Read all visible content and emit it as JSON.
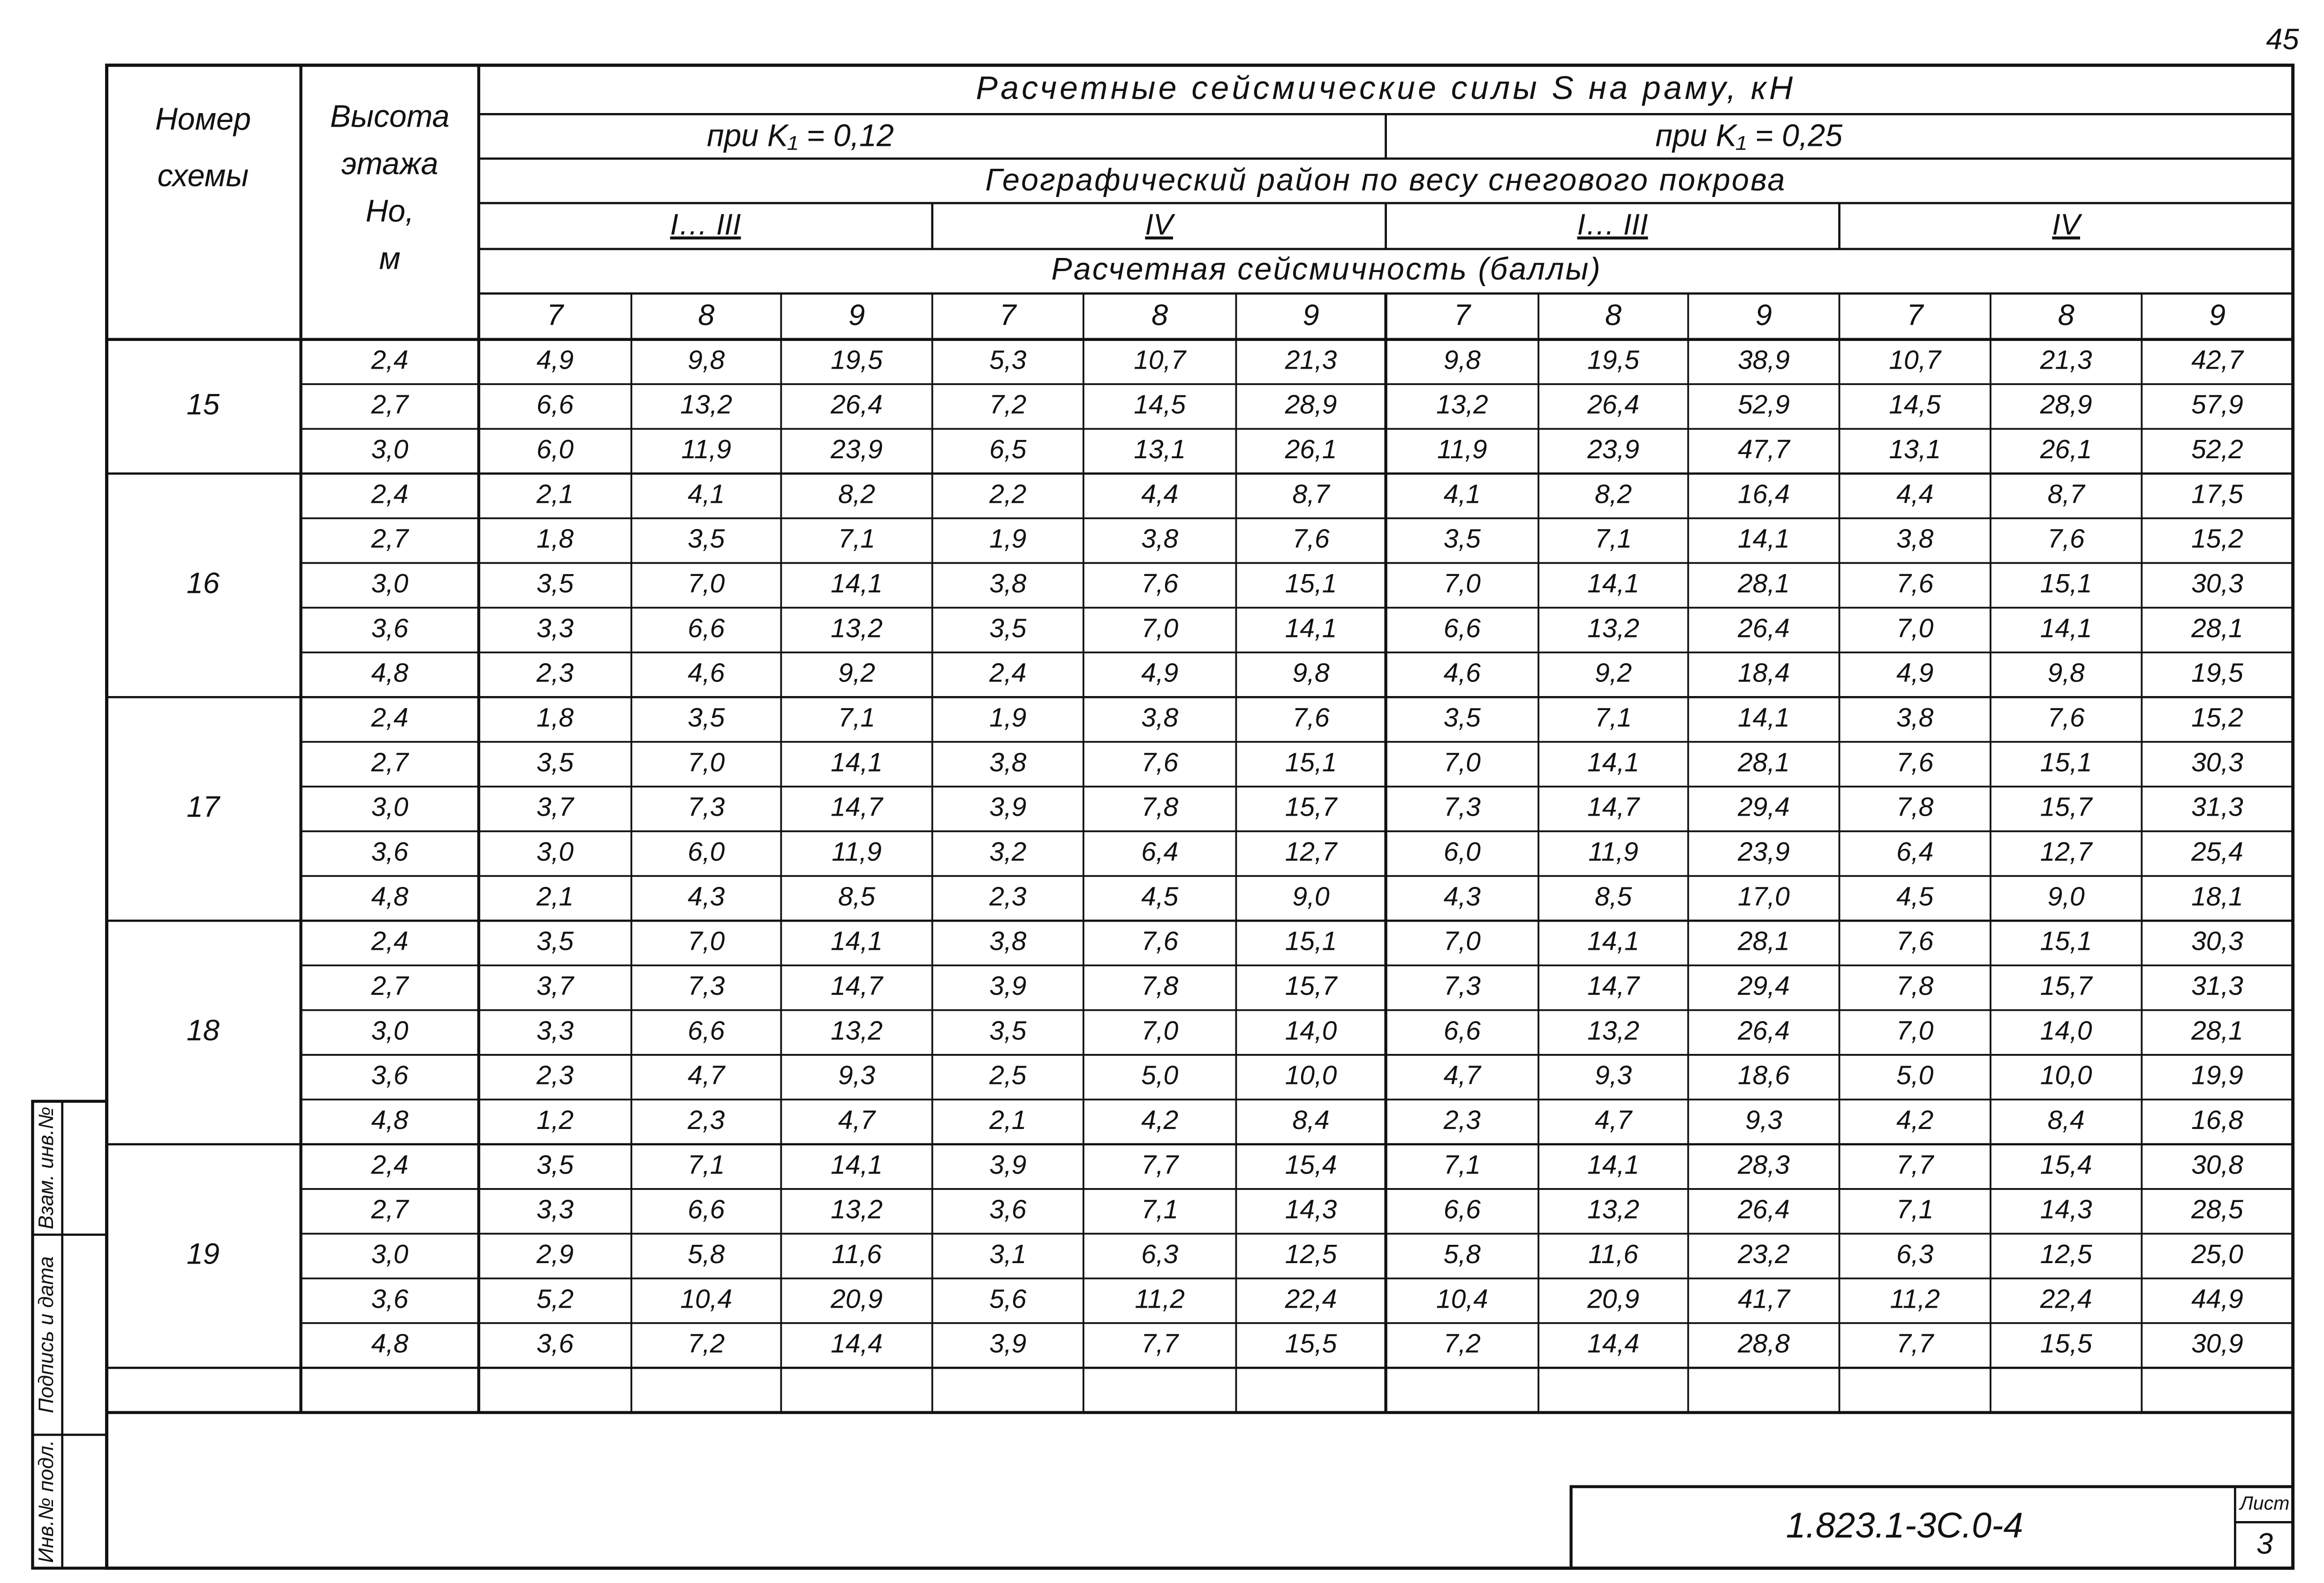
{
  "page_number": "45",
  "header": {
    "scheme": [
      "Номер",
      "схемы"
    ],
    "height": [
      "Высота",
      "этажа",
      "Hо,",
      "м"
    ],
    "title": "Расчетные сейсмические силы S на раму, кН",
    "coef": [
      "при K₁ = 0,12",
      "при K₁ = 0,25"
    ],
    "region_title": "Географический район по весу снегового покрова",
    "regions": [
      "I… III",
      "IV",
      "I… III",
      "IV"
    ],
    "intensity_title": "Расчетная сейсмичность (баллы)",
    "intensities": [
      "7",
      "8",
      "9",
      "7",
      "8",
      "9",
      "7",
      "8",
      "9",
      "7",
      "8",
      "9"
    ]
  },
  "groups": [
    {
      "scheme": "15",
      "rows": [
        {
          "height": "2,4",
          "values": [
            "4,9",
            "9,8",
            "19,5",
            "5,3",
            "10,7",
            "21,3",
            "9,8",
            "19,5",
            "38,9",
            "10,7",
            "21,3",
            "42,7"
          ]
        },
        {
          "height": "2,7",
          "values": [
            "6,6",
            "13,2",
            "26,4",
            "7,2",
            "14,5",
            "28,9",
            "13,2",
            "26,4",
            "52,9",
            "14,5",
            "28,9",
            "57,9"
          ]
        },
        {
          "height": "3,0",
          "values": [
            "6,0",
            "11,9",
            "23,9",
            "6,5",
            "13,1",
            "26,1",
            "11,9",
            "23,9",
            "47,7",
            "13,1",
            "26,1",
            "52,2"
          ]
        }
      ]
    },
    {
      "scheme": "16",
      "rows": [
        {
          "height": "2,4",
          "values": [
            "2,1",
            "4,1",
            "8,2",
            "2,2",
            "4,4",
            "8,7",
            "4,1",
            "8,2",
            "16,4",
            "4,4",
            "8,7",
            "17,5"
          ]
        },
        {
          "height": "2,7",
          "values": [
            "1,8",
            "3,5",
            "7,1",
            "1,9",
            "3,8",
            "7,6",
            "3,5",
            "7,1",
            "14,1",
            "3,8",
            "7,6",
            "15,2"
          ]
        },
        {
          "height": "3,0",
          "values": [
            "3,5",
            "7,0",
            "14,1",
            "3,8",
            "7,6",
            "15,1",
            "7,0",
            "14,1",
            "28,1",
            "7,6",
            "15,1",
            "30,3"
          ]
        },
        {
          "height": "3,6",
          "values": [
            "3,3",
            "6,6",
            "13,2",
            "3,5",
            "7,0",
            "14,1",
            "6,6",
            "13,2",
            "26,4",
            "7,0",
            "14,1",
            "28,1"
          ]
        },
        {
          "height": "4,8",
          "values": [
            "2,3",
            "4,6",
            "9,2",
            "2,4",
            "4,9",
            "9,8",
            "4,6",
            "9,2",
            "18,4",
            "4,9",
            "9,8",
            "19,5"
          ]
        }
      ]
    },
    {
      "scheme": "17",
      "rows": [
        {
          "height": "2,4",
          "values": [
            "1,8",
            "3,5",
            "7,1",
            "1,9",
            "3,8",
            "7,6",
            "3,5",
            "7,1",
            "14,1",
            "3,8",
            "7,6",
            "15,2"
          ]
        },
        {
          "height": "2,7",
          "values": [
            "3,5",
            "7,0",
            "14,1",
            "3,8",
            "7,6",
            "15,1",
            "7,0",
            "14,1",
            "28,1",
            "7,6",
            "15,1",
            "30,3"
          ]
        },
        {
          "height": "3,0",
          "values": [
            "3,7",
            "7,3",
            "14,7",
            "3,9",
            "7,8",
            "15,7",
            "7,3",
            "14,7",
            "29,4",
            "7,8",
            "15,7",
            "31,3"
          ]
        },
        {
          "height": "3,6",
          "values": [
            "3,0",
            "6,0",
            "11,9",
            "3,2",
            "6,4",
            "12,7",
            "6,0",
            "11,9",
            "23,9",
            "6,4",
            "12,7",
            "25,4"
          ]
        },
        {
          "height": "4,8",
          "values": [
            "2,1",
            "4,3",
            "8,5",
            "2,3",
            "4,5",
            "9,0",
            "4,3",
            "8,5",
            "17,0",
            "4,5",
            "9,0",
            "18,1"
          ]
        }
      ]
    },
    {
      "scheme": "18",
      "rows": [
        {
          "height": "2,4",
          "values": [
            "3,5",
            "7,0",
            "14,1",
            "3,8",
            "7,6",
            "15,1",
            "7,0",
            "14,1",
            "28,1",
            "7,6",
            "15,1",
            "30,3"
          ]
        },
        {
          "height": "2,7",
          "values": [
            "3,7",
            "7,3",
            "14,7",
            "3,9",
            "7,8",
            "15,7",
            "7,3",
            "14,7",
            "29,4",
            "7,8",
            "15,7",
            "31,3"
          ]
        },
        {
          "height": "3,0",
          "values": [
            "3,3",
            "6,6",
            "13,2",
            "3,5",
            "7,0",
            "14,0",
            "6,6",
            "13,2",
            "26,4",
            "7,0",
            "14,0",
            "28,1"
          ]
        },
        {
          "height": "3,6",
          "values": [
            "2,3",
            "4,7",
            "9,3",
            "2,5",
            "5,0",
            "10,0",
            "4,7",
            "9,3",
            "18,6",
            "5,0",
            "10,0",
            "19,9"
          ]
        },
        {
          "height": "4,8",
          "values": [
            "1,2",
            "2,3",
            "4,7",
            "2,1",
            "4,2",
            "8,4",
            "2,3",
            "4,7",
            "9,3",
            "4,2",
            "8,4",
            "16,8"
          ]
        }
      ]
    },
    {
      "scheme": "19",
      "rows": [
        {
          "height": "2,4",
          "values": [
            "3,5",
            "7,1",
            "14,1",
            "3,9",
            "7,7",
            "15,4",
            "7,1",
            "14,1",
            "28,3",
            "7,7",
            "15,4",
            "30,8"
          ]
        },
        {
          "height": "2,7",
          "values": [
            "3,3",
            "6,6",
            "13,2",
            "3,6",
            "7,1",
            "14,3",
            "6,6",
            "13,2",
            "26,4",
            "7,1",
            "14,3",
            "28,5"
          ]
        },
        {
          "height": "3,0",
          "values": [
            "2,9",
            "5,8",
            "11,6",
            "3,1",
            "6,3",
            "12,5",
            "5,8",
            "11,6",
            "23,2",
            "6,3",
            "12,5",
            "25,0"
          ]
        },
        {
          "height": "3,6",
          "values": [
            "5,2",
            "10,4",
            "20,9",
            "5,6",
            "11,2",
            "22,4",
            "10,4",
            "20,9",
            "41,7",
            "11,2",
            "22,4",
            "44,9"
          ]
        },
        {
          "height": "4,8",
          "values": [
            "3,6",
            "7,2",
            "14,4",
            "3,9",
            "7,7",
            "15,5",
            "7,2",
            "14,4",
            "28,8",
            "7,7",
            "15,5",
            "30,9"
          ]
        }
      ]
    }
  ],
  "stamp": {
    "code": "1.823.1-3С.0-4",
    "sheet_label": "Лист",
    "sheet": "3"
  },
  "side": [
    "Взам. инв.№",
    "Подпись и дата",
    "Инв.№ подл."
  ]
}
